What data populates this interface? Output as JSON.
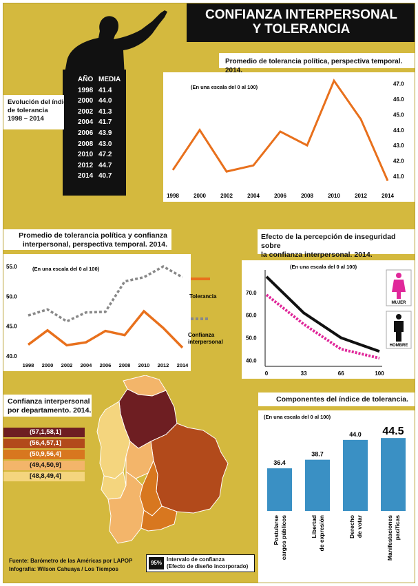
{
  "header": {
    "title_line1": "CONFIANZA INTERPERSONAL",
    "title_line2": "Y TOLERANCIA"
  },
  "evolution": {
    "label_line1": "Evolución del índice",
    "label_line2": "de tolerancia",
    "label_line3": "1998 – 2014",
    "col_year": "AÑO",
    "col_media": "MEDIA",
    "rows": [
      {
        "year": "1998",
        "media": "41.4"
      },
      {
        "year": "2000",
        "media": "44.0"
      },
      {
        "year": "2002",
        "media": "41.3"
      },
      {
        "year": "2004",
        "media": "41.7"
      },
      {
        "year": "2006",
        "media": "43.9"
      },
      {
        "year": "2008",
        "media": "43.0"
      },
      {
        "year": "2010",
        "media": "47.2"
      },
      {
        "year": "2012",
        "media": "44.7"
      },
      {
        "year": "2014",
        "media": "40.7"
      }
    ]
  },
  "chart_data": [
    {
      "type": "line",
      "title": "Promedio de tolerancia política, perspectiva temporal. 2014.",
      "note": "(En una escala del 0 al 100)",
      "x": [
        1998,
        2000,
        2002,
        2004,
        2006,
        2008,
        2010,
        2012,
        2014
      ],
      "series": [
        {
          "values": [
            41.4,
            44.0,
            41.3,
            41.7,
            43.9,
            43.0,
            47.2,
            44.7,
            40.7
          ]
        }
      ],
      "yticks": [
        "47.0",
        "46.0",
        "45.0",
        "44.0",
        "43.0",
        "42.0",
        "41.0"
      ],
      "ylim": [
        40.5,
        47.3
      ],
      "color": "#e8701c"
    },
    {
      "type": "line",
      "title_line1": "Promedio de tolerancia política y confianza",
      "title_line2": "interpersonal, perspectiva temporal. 2014.",
      "note": "(En una escala del 0 al 100)",
      "x": [
        1998,
        2000,
        2002,
        2004,
        2006,
        2008,
        2010,
        2012,
        2014
      ],
      "series": [
        {
          "name": "Tolerancia",
          "values": [
            41.9,
            44.3,
            41.8,
            42.3,
            44.2,
            43.5,
            47.5,
            44.7,
            41.4
          ],
          "color": "#e8701c"
        },
        {
          "name": "Confianza interpersonal",
          "values": [
            46.8,
            47.8,
            45.8,
            47.3,
            47.4,
            52.5,
            53.2,
            55.0,
            53.2
          ],
          "color": "#888888"
        }
      ],
      "legend_tol": "Tolerancia",
      "legend_conf_line1": "Confianza",
      "legend_conf_line2": "interpersonal",
      "yticks": [
        "55.0",
        "50.0",
        "45.0",
        "40.0"
      ],
      "ylim": [
        40,
        55
      ]
    },
    {
      "type": "line",
      "title_line1": "Efecto de la percepción de inseguridad sobre",
      "title_line2": "la confianza interpersonal. 2014.",
      "note": "(En una escala del 0 al 100)",
      "x": [
        0,
        33,
        66,
        100
      ],
      "xticks": [
        "0",
        "33",
        "66",
        "100"
      ],
      "series": [
        {
          "name": "HOMBRE",
          "values": [
            77,
            61,
            50,
            44
          ],
          "color": "#111111"
        },
        {
          "name": "MUJER",
          "values": [
            69,
            56,
            45,
            41
          ],
          "color": "#e0289a"
        }
      ],
      "legend_woman": "MUJER",
      "legend_man": "HOMBRE",
      "yticks": [
        "70.0",
        "60.0",
        "50.0",
        "40.0"
      ],
      "ylim": [
        38,
        80
      ]
    },
    {
      "type": "bar",
      "title": "Componentes del índice de tolerancia.",
      "note": "(En una escala del 0 al 100)",
      "categories_line1": [
        "Postularse",
        "Libertad",
        "Derecho",
        "Manifestaciones"
      ],
      "categories_line2": [
        "cargos públicos",
        "de expresión",
        "de votar",
        "pacíficas"
      ],
      "values": [
        36.4,
        38.7,
        44.0,
        44.5
      ],
      "labels": [
        "36.4",
        "38.7",
        "44.0",
        "44.5"
      ],
      "color": "#3a90c4",
      "ylim": [
        25,
        46
      ]
    },
    {
      "type": "map",
      "title_line1": "Confianza interpersonal",
      "title_line2": "por departamento. 2014.",
      "legend": [
        {
          "label": "(57,1,58,1]",
          "color": "#6e1e22"
        },
        {
          "label": "(56,4,57,1]",
          "color": "#b24a1b"
        },
        {
          "label": "(50,9,56,4]",
          "color": "#d8771f"
        },
        {
          "label": "(49,4,50,9]",
          "color": "#f3b56a"
        },
        {
          "label": "[48,8,49,4]",
          "color": "#f4d57e"
        }
      ]
    }
  ],
  "footer": {
    "source_label": "Fuente:",
    "source_text": "Barómetro de las Américas por LAPOP",
    "info_label": "Infografía:",
    "info_text": "Wilson Cahuaya / Los Tiempos",
    "ci_badge": "95%",
    "ci_line1": "Intervalo de confianza",
    "ci_line2": "(Efecto de diseño incorporado)"
  }
}
